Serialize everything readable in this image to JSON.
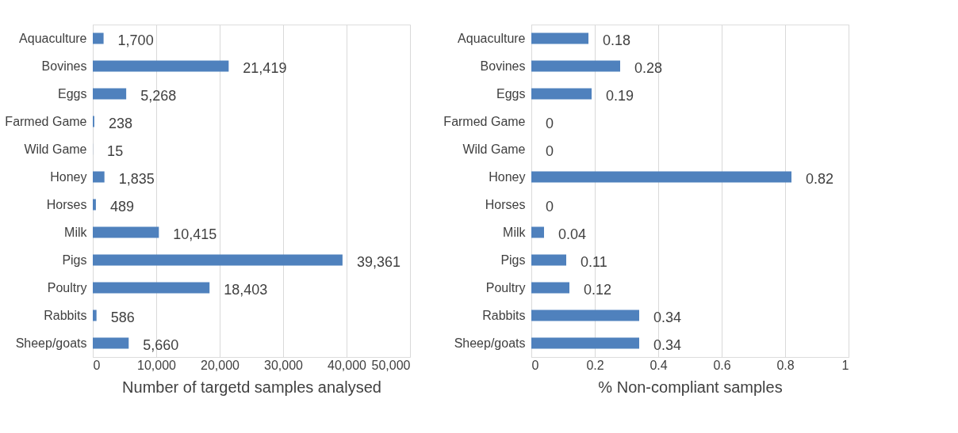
{
  "chart_data": [
    {
      "type": "bar",
      "orientation": "horizontal",
      "xlabel": "Number of targetd samples analysed",
      "categories": [
        "Aquaculture",
        "Bovines",
        "Eggs",
        "Farmed Game",
        "Wild Game",
        "Honey",
        "Horses",
        "Milk",
        "Pigs",
        "Poultry",
        "Rabbits",
        "Sheep/goats"
      ],
      "values": [
        1700,
        21419,
        5268,
        238,
        15,
        1835,
        489,
        10415,
        39361,
        18403,
        586,
        5660
      ],
      "value_labels": [
        "1,700",
        "21,419",
        "5,268",
        "238",
        "15",
        "1,835",
        "489",
        "10,415",
        "39,361",
        "18,403",
        "586",
        "5,660"
      ],
      "color": "#4f81bd",
      "xlim": [
        0,
        50000
      ],
      "xticks": [
        0,
        {
          "value": 10000,
          "label": "10,000"
        },
        {
          "value": 20000,
          "label": "20,000"
        },
        {
          "value": 30000,
          "label": "30,000"
        },
        {
          "value": 40000,
          "label": "40,000"
        },
        {
          "value": 50000,
          "label": "50,000"
        }
      ],
      "grid": "x"
    },
    {
      "type": "bar",
      "orientation": "horizontal",
      "xlabel": "% Non-compliant samples",
      "categories": [
        "Aquaculture",
        "Bovines",
        "Eggs",
        "Farmed Game",
        "Wild Game",
        "Honey",
        "Horses",
        "Milk",
        "Pigs",
        "Poultry",
        "Rabbits",
        "Sheep/goats"
      ],
      "values": [
        0.18,
        0.28,
        0.19,
        0,
        0,
        0.82,
        0,
        0.04,
        0.11,
        0.12,
        0.34,
        0.34
      ],
      "data_labels": true,
      "color": "#4f81bd",
      "xlim": [
        0,
        1
      ],
      "xticks": [
        0,
        0.2,
        0.4,
        0.6,
        0.8,
        1
      ],
      "grid": "x"
    }
  ]
}
